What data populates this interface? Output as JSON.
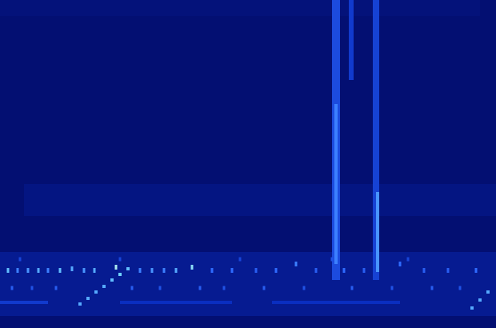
{
  "chart_data": {
    "type": "heatmap",
    "xlim": [
      0,
      620
    ],
    "ylim": [
      0,
      410
    ],
    "zlim": [
      0,
      1
    ],
    "tick_labels": false,
    "cells": [
      {
        "x": 310,
        "y": 55,
        "w": 620,
        "h": 80,
        "v": 0.12
      },
      {
        "x": 325,
        "y": 160,
        "w": 590,
        "h": 40,
        "v": 0.06
      },
      {
        "x": 300,
        "y": 400,
        "w": 600,
        "h": 20,
        "v": 0.03
      },
      {
        "x": 420,
        "y": 235,
        "w": 10,
        "h": 350,
        "v": 0.42
      },
      {
        "x": 420,
        "y": 180,
        "w": 4,
        "h": 200,
        "v": 0.6
      },
      {
        "x": 439,
        "y": 360,
        "w": 6,
        "h": 100,
        "v": 0.35
      },
      {
        "x": 470,
        "y": 235,
        "w": 8,
        "h": 350,
        "v": 0.38
      },
      {
        "x": 472,
        "y": 120,
        "w": 4,
        "h": 100,
        "v": 0.65
      },
      {
        "x": 10,
        "y": 72,
        "w": 3,
        "h": 6,
        "v": 0.75
      },
      {
        "x": 22,
        "y": 72,
        "w": 3,
        "h": 6,
        "v": 0.6
      },
      {
        "x": 35,
        "y": 72,
        "w": 3,
        "h": 6,
        "v": 0.65
      },
      {
        "x": 48,
        "y": 72,
        "w": 3,
        "h": 6,
        "v": 0.7
      },
      {
        "x": 60,
        "y": 72,
        "w": 3,
        "h": 6,
        "v": 0.6
      },
      {
        "x": 75,
        "y": 72,
        "w": 3,
        "h": 6,
        "v": 0.75
      },
      {
        "x": 90,
        "y": 74,
        "w": 3,
        "h": 6,
        "v": 0.7
      },
      {
        "x": 105,
        "y": 72,
        "w": 3,
        "h": 6,
        "v": 0.65
      },
      {
        "x": 118,
        "y": 72,
        "w": 3,
        "h": 6,
        "v": 0.7
      },
      {
        "x": 145,
        "y": 76,
        "w": 3,
        "h": 6,
        "v": 0.9
      },
      {
        "x": 175,
        "y": 72,
        "w": 3,
        "h": 6,
        "v": 0.6
      },
      {
        "x": 190,
        "y": 72,
        "w": 3,
        "h": 6,
        "v": 0.65
      },
      {
        "x": 205,
        "y": 72,
        "w": 3,
        "h": 6,
        "v": 0.6
      },
      {
        "x": 220,
        "y": 72,
        "w": 3,
        "h": 6,
        "v": 0.7
      },
      {
        "x": 240,
        "y": 76,
        "w": 3,
        "h": 6,
        "v": 0.85
      },
      {
        "x": 265,
        "y": 72,
        "w": 3,
        "h": 6,
        "v": 0.55
      },
      {
        "x": 290,
        "y": 72,
        "w": 3,
        "h": 6,
        "v": 0.55
      },
      {
        "x": 320,
        "y": 72,
        "w": 3,
        "h": 6,
        "v": 0.5
      },
      {
        "x": 345,
        "y": 72,
        "w": 3,
        "h": 6,
        "v": 0.55
      },
      {
        "x": 370,
        "y": 80,
        "w": 3,
        "h": 6,
        "v": 0.6
      },
      {
        "x": 395,
        "y": 72,
        "w": 3,
        "h": 6,
        "v": 0.5
      },
      {
        "x": 430,
        "y": 72,
        "w": 3,
        "h": 6,
        "v": 0.55
      },
      {
        "x": 455,
        "y": 72,
        "w": 3,
        "h": 6,
        "v": 0.5
      },
      {
        "x": 500,
        "y": 80,
        "w": 3,
        "h": 6,
        "v": 0.55
      },
      {
        "x": 530,
        "y": 72,
        "w": 3,
        "h": 6,
        "v": 0.5
      },
      {
        "x": 560,
        "y": 72,
        "w": 3,
        "h": 6,
        "v": 0.5
      },
      {
        "x": 595,
        "y": 72,
        "w": 3,
        "h": 6,
        "v": 0.55
      },
      {
        "x": 15,
        "y": 50,
        "w": 3,
        "h": 5,
        "v": 0.5
      },
      {
        "x": 40,
        "y": 50,
        "w": 3,
        "h": 5,
        "v": 0.45
      },
      {
        "x": 70,
        "y": 50,
        "w": 3,
        "h": 5,
        "v": 0.5
      },
      {
        "x": 165,
        "y": 50,
        "w": 3,
        "h": 5,
        "v": 0.5
      },
      {
        "x": 200,
        "y": 50,
        "w": 3,
        "h": 5,
        "v": 0.45
      },
      {
        "x": 250,
        "y": 50,
        "w": 3,
        "h": 5,
        "v": 0.5
      },
      {
        "x": 280,
        "y": 50,
        "w": 3,
        "h": 5,
        "v": 0.45
      },
      {
        "x": 330,
        "y": 50,
        "w": 3,
        "h": 5,
        "v": 0.5
      },
      {
        "x": 380,
        "y": 50,
        "w": 3,
        "h": 5,
        "v": 0.45
      },
      {
        "x": 440,
        "y": 50,
        "w": 3,
        "h": 5,
        "v": 0.5
      },
      {
        "x": 490,
        "y": 50,
        "w": 3,
        "h": 5,
        "v": 0.45
      },
      {
        "x": 540,
        "y": 50,
        "w": 3,
        "h": 5,
        "v": 0.5
      },
      {
        "x": 575,
        "y": 50,
        "w": 3,
        "h": 5,
        "v": 0.45
      },
      {
        "x": 30,
        "y": 32,
        "w": 60,
        "h": 4,
        "v": 0.35
      },
      {
        "x": 220,
        "y": 32,
        "w": 140,
        "h": 4,
        "v": 0.3
      },
      {
        "x": 420,
        "y": 32,
        "w": 160,
        "h": 4,
        "v": 0.3
      },
      {
        "x": 25,
        "y": 86,
        "w": 3,
        "h": 5,
        "v": 0.4
      },
      {
        "x": 150,
        "y": 86,
        "w": 3,
        "h": 5,
        "v": 0.4
      },
      {
        "x": 300,
        "y": 86,
        "w": 3,
        "h": 5,
        "v": 0.4
      },
      {
        "x": 415,
        "y": 86,
        "w": 3,
        "h": 5,
        "v": 0.45
      },
      {
        "x": 510,
        "y": 86,
        "w": 3,
        "h": 5,
        "v": 0.4
      },
      {
        "x": 100,
        "y": 30,
        "w": 4,
        "h": 4,
        "v": 0.7
      },
      {
        "x": 110,
        "y": 37,
        "w": 4,
        "h": 4,
        "v": 0.7
      },
      {
        "x": 120,
        "y": 45,
        "w": 4,
        "h": 4,
        "v": 0.7
      },
      {
        "x": 130,
        "y": 52,
        "w": 4,
        "h": 4,
        "v": 0.7
      },
      {
        "x": 140,
        "y": 60,
        "w": 4,
        "h": 4,
        "v": 0.75
      },
      {
        "x": 150,
        "y": 67,
        "w": 4,
        "h": 4,
        "v": 0.8
      },
      {
        "x": 160,
        "y": 74,
        "w": 4,
        "h": 4,
        "v": 0.75
      },
      {
        "x": 590,
        "y": 25,
        "w": 4,
        "h": 4,
        "v": 0.7
      },
      {
        "x": 600,
        "y": 35,
        "w": 4,
        "h": 4,
        "v": 0.7
      },
      {
        "x": 610,
        "y": 45,
        "w": 4,
        "h": 4,
        "v": 0.7
      }
    ]
  }
}
